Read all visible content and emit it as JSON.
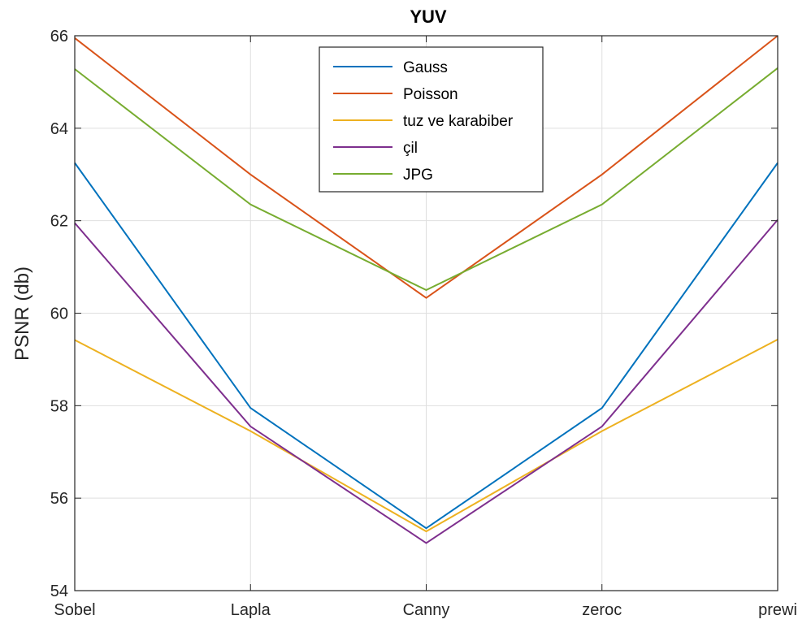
{
  "chart_data": {
    "type": "line",
    "title": "YUV",
    "xlabel": "",
    "ylabel": "PSNR (db)",
    "categories": [
      "Sobel",
      "Lapla",
      "Canny",
      "zeroc",
      "prewi"
    ],
    "ylim": [
      54,
      66
    ],
    "yticks": [
      54,
      56,
      58,
      60,
      62,
      64,
      66
    ],
    "grid": true,
    "legend_position": "top-center",
    "series": [
      {
        "name": "Gauss",
        "color": "#0072BD",
        "values": [
          63.25,
          57.95,
          55.35,
          57.95,
          63.25
        ]
      },
      {
        "name": "Poisson",
        "color": "#D95319",
        "values": [
          65.95,
          63.0,
          60.33,
          63.0,
          66.0
        ]
      },
      {
        "name": "tuz ve karabiber",
        "color": "#EDB120",
        "values": [
          59.42,
          57.45,
          55.28,
          57.45,
          59.43
        ]
      },
      {
        "name": "çil",
        "color": "#7E2F8E",
        "values": [
          61.95,
          57.55,
          55.03,
          57.55,
          62.02
        ]
      },
      {
        "name": "JPG",
        "color": "#77AC30",
        "values": [
          65.28,
          62.35,
          60.5,
          62.35,
          65.3
        ]
      }
    ]
  }
}
